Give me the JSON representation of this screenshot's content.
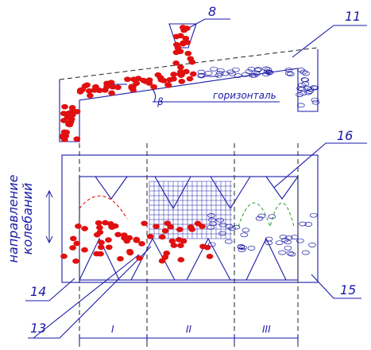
{
  "callouts": [
    "8",
    "11",
    "16",
    "14",
    "15",
    "13"
  ],
  "angle": "β",
  "horizontal": "горизонталь",
  "direction": [
    "направление",
    "колебаний"
  ],
  "zones": [
    "I",
    "II",
    "III"
  ]
}
